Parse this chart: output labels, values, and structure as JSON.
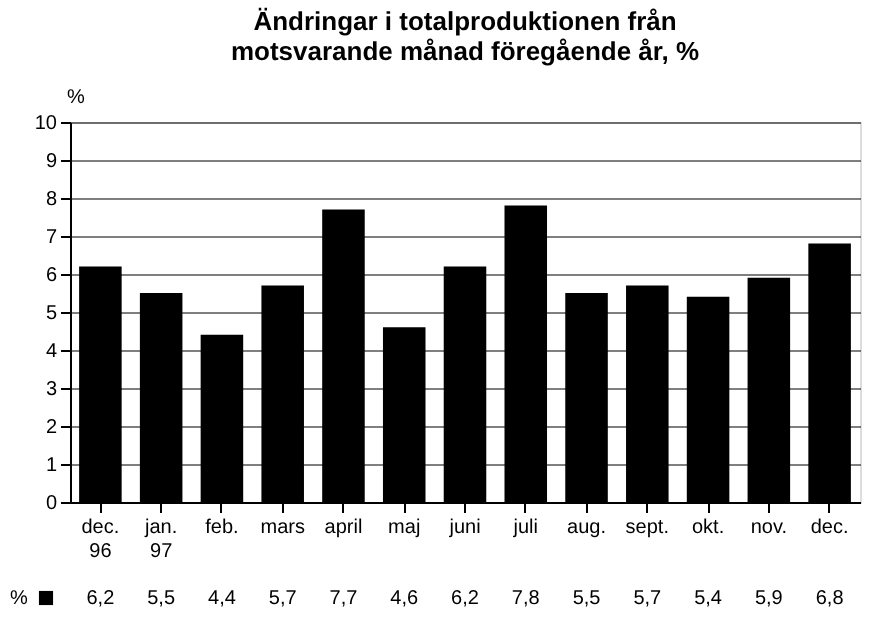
{
  "chart_data": {
    "type": "bar",
    "title": "Ändringar i totalproduktionen från motsvarande månad föregående år, %",
    "ylabel": "%",
    "categories": [
      "dec. 96",
      "jan. 97",
      "feb.",
      "mars",
      "april",
      "maj",
      "juni",
      "juli",
      "aug.",
      "sept.",
      "okt.",
      "nov.",
      "dec."
    ],
    "series": [
      {
        "name": "%",
        "color": "#000000",
        "values": [
          6.2,
          5.5,
          4.4,
          5.7,
          7.7,
          4.6,
          6.2,
          7.8,
          5.5,
          5.7,
          5.4,
          5.9,
          6.8
        ],
        "value_labels": [
          "6,2",
          "5,5",
          "4,4",
          "5,7",
          "7,7",
          "4,6",
          "6,2",
          "7,8",
          "5,5",
          "5,7",
          "5,4",
          "5,9",
          "6,8"
        ]
      }
    ],
    "ylim": [
      0,
      10
    ],
    "yticks": [
      0,
      1,
      2,
      3,
      4,
      5,
      6,
      7,
      8,
      9,
      10
    ],
    "grid": "y",
    "legend": "bottom left"
  }
}
